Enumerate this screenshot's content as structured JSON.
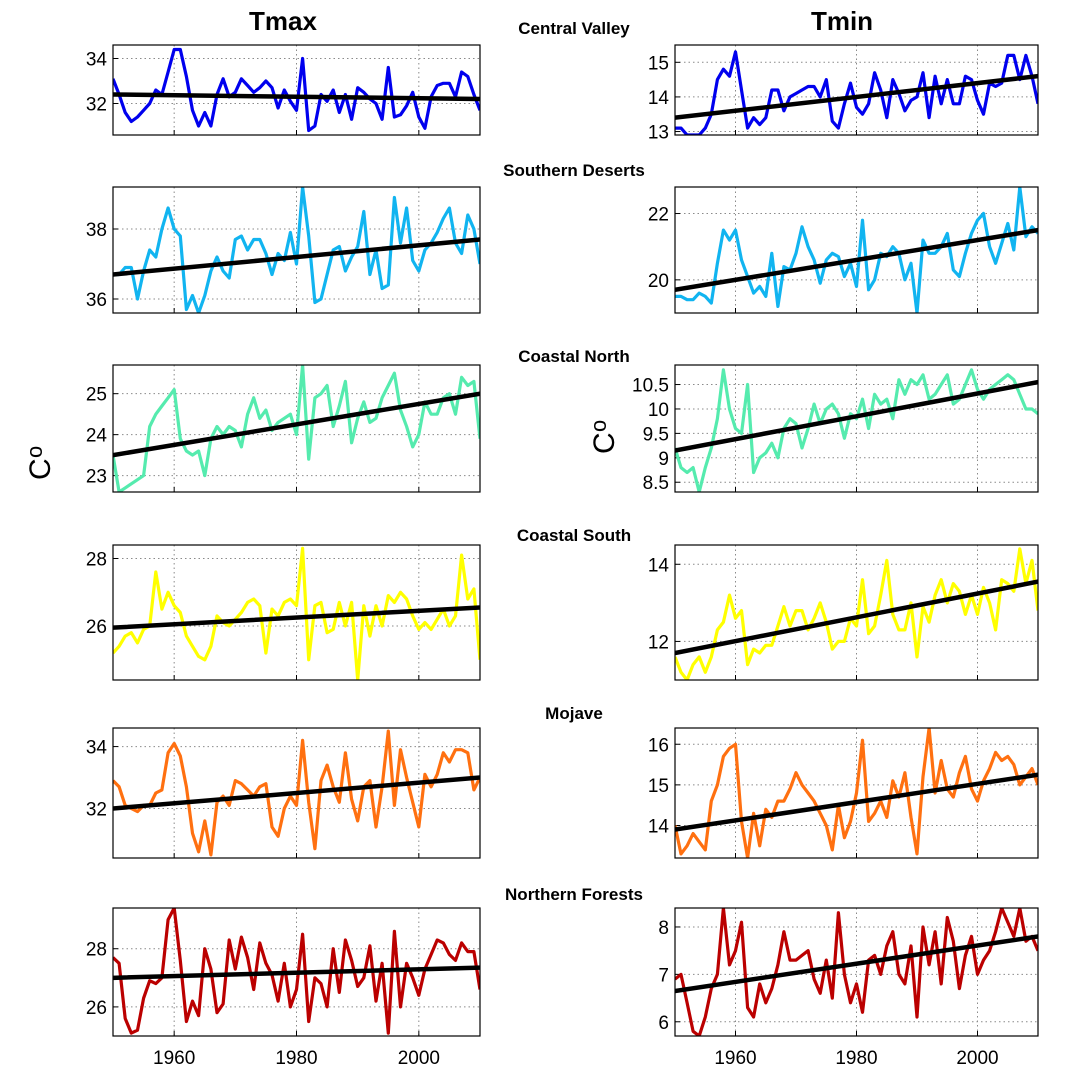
{
  "figure": {
    "column_titles": [
      "Tmax",
      "Tmin"
    ],
    "y_unit": "°C",
    "y_unit_base": "C",
    "y_unit_sup": "o"
  },
  "chart_data": [
    {
      "type": "line",
      "panel": "Central Valley Tmax",
      "title": "Central Valley",
      "column": "Tmax",
      "color": "#0000ee",
      "x_start": 1950,
      "x_step": 1,
      "xlim": [
        1950,
        2010
      ],
      "xticks": [
        1960,
        1980,
        2000
      ],
      "ylim": [
        30.6,
        34.6
      ],
      "yticks": [
        32,
        34
      ],
      "ytick_labels": [
        "32",
        "34"
      ],
      "grid": true,
      "values": [
        33.1,
        32.4,
        31.6,
        31.2,
        31.4,
        31.7,
        32.0,
        32.6,
        32.4,
        33.4,
        34.4,
        34.4,
        33.2,
        31.7,
        31.0,
        31.6,
        31.0,
        32.4,
        33.1,
        32.3,
        32.5,
        33.1,
        32.8,
        32.5,
        32.7,
        33.0,
        32.7,
        31.8,
        32.6,
        32.1,
        31.7,
        34.0,
        30.8,
        31.0,
        32.4,
        32.1,
        32.6,
        31.6,
        32.4,
        31.3,
        32.7,
        32.5,
        32.2,
        32.0,
        31.3,
        33.6,
        31.4,
        31.5,
        31.9,
        32.5,
        31.4,
        30.9,
        32.3,
        32.8,
        32.9,
        32.9,
        32.3,
        33.4,
        33.2,
        32.4,
        31.7
      ],
      "trend": [
        32.4,
        32.2
      ]
    },
    {
      "type": "line",
      "panel": "Central Valley Tmin",
      "title": "Central Valley",
      "column": "Tmin",
      "color": "#0000ee",
      "x_start": 1950,
      "x_step": 1,
      "xlim": [
        1950,
        2010
      ],
      "xticks": [
        1960,
        1980,
        2000
      ],
      "ylim": [
        12.9,
        15.5
      ],
      "yticks": [
        13,
        14,
        15
      ],
      "ytick_labels": [
        "13",
        "14",
        "15"
      ],
      "grid": true,
      "values": [
        13.1,
        13.1,
        12.9,
        12.9,
        12.9,
        13.1,
        13.5,
        14.5,
        14.8,
        14.6,
        15.3,
        14.2,
        13.1,
        13.4,
        13.2,
        13.4,
        14.2,
        14.2,
        13.6,
        14.0,
        14.1,
        14.2,
        14.3,
        14.3,
        14.0,
        14.5,
        13.3,
        13.1,
        13.8,
        14.4,
        13.7,
        13.5,
        13.8,
        14.7,
        14.2,
        13.4,
        14.5,
        14.1,
        13.6,
        13.9,
        14.0,
        14.7,
        13.4,
        14.6,
        13.8,
        14.5,
        13.8,
        13.8,
        14.6,
        14.5,
        13.9,
        13.5,
        14.4,
        14.3,
        14.4,
        15.2,
        15.2,
        14.5,
        15.2,
        14.6,
        13.8
      ],
      "trend": [
        13.4,
        14.6
      ]
    },
    {
      "type": "line",
      "panel": "Southern Deserts Tmax",
      "title": "Southern Deserts",
      "column": "Tmax",
      "color": "#11b4f0",
      "x_start": 1950,
      "x_step": 1,
      "xlim": [
        1950,
        2010
      ],
      "xticks": [
        1960,
        1980,
        2000
      ],
      "ylim": [
        35.6,
        39.2
      ],
      "yticks": [
        36,
        38
      ],
      "ytick_labels": [
        "36",
        "38"
      ],
      "grid": true,
      "values": [
        36.7,
        36.7,
        36.9,
        36.9,
        36.0,
        36.8,
        37.4,
        37.2,
        38.0,
        38.6,
        38.0,
        37.8,
        35.7,
        36.1,
        35.6,
        36.1,
        36.8,
        37.2,
        36.8,
        36.6,
        37.7,
        37.8,
        37.4,
        37.7,
        37.7,
        37.3,
        36.7,
        37.3,
        37.1,
        37.9,
        37.0,
        39.2,
        37.8,
        35.9,
        36.0,
        36.7,
        37.4,
        37.5,
        36.8,
        37.2,
        37.5,
        38.5,
        36.7,
        37.4,
        36.3,
        36.4,
        38.9,
        37.6,
        38.6,
        37.1,
        36.8,
        37.4,
        37.6,
        37.9,
        38.3,
        38.6,
        37.6,
        37.3,
        38.4,
        38.0,
        37.0
      ],
      "trend": [
        36.7,
        37.7
      ]
    },
    {
      "type": "line",
      "panel": "Southern Deserts Tmin",
      "title": "Southern Deserts",
      "column": "Tmin",
      "color": "#11b4f0",
      "x_start": 1950,
      "x_step": 1,
      "xlim": [
        1950,
        2010
      ],
      "xticks": [
        1960,
        1980,
        2000
      ],
      "ylim": [
        19.0,
        22.8
      ],
      "yticks": [
        20,
        22
      ],
      "ytick_labels": [
        "20",
        "22"
      ],
      "grid": true,
      "values": [
        19.5,
        19.5,
        19.4,
        19.4,
        19.6,
        19.5,
        19.3,
        20.5,
        21.5,
        21.2,
        21.5,
        20.6,
        20.1,
        19.6,
        19.8,
        19.5,
        20.8,
        19.2,
        20.4,
        20.3,
        20.8,
        21.6,
        21.0,
        20.6,
        19.9,
        20.6,
        20.8,
        20.7,
        20.1,
        20.5,
        19.8,
        21.8,
        19.7,
        20.0,
        20.8,
        20.7,
        21.0,
        20.8,
        20.0,
        20.5,
        19.0,
        21.2,
        20.8,
        20.8,
        21.0,
        21.4,
        20.3,
        20.1,
        20.8,
        21.4,
        21.8,
        22.0,
        21.0,
        20.5,
        21.1,
        21.7,
        20.9,
        22.8,
        21.3,
        21.6,
        21.4
      ],
      "trend": [
        19.7,
        21.5
      ]
    },
    {
      "type": "line",
      "panel": "Coastal North Tmax",
      "title": "Coastal North",
      "column": "Tmax",
      "color": "#55ebae",
      "x_start": 1950,
      "x_step": 1,
      "xlim": [
        1950,
        2010
      ],
      "xticks": [
        1960,
        1980,
        2000
      ],
      "ylim": [
        22.6,
        25.7
      ],
      "yticks": [
        23,
        24,
        25
      ],
      "ytick_labels": [
        "23",
        "24",
        "25"
      ],
      "grid": true,
      "values": [
        23.5,
        22.6,
        22.7,
        22.8,
        22.9,
        23.0,
        24.2,
        24.5,
        24.7,
        24.9,
        25.1,
        23.9,
        23.6,
        23.5,
        23.6,
        23.0,
        23.9,
        24.2,
        24.0,
        24.2,
        24.1,
        23.7,
        24.5,
        24.9,
        24.4,
        24.6,
        24.1,
        24.3,
        24.4,
        24.5,
        24.0,
        25.7,
        23.4,
        24.9,
        25.0,
        25.2,
        24.2,
        24.7,
        25.3,
        23.8,
        24.4,
        24.8,
        24.3,
        24.4,
        24.9,
        25.2,
        25.5,
        24.6,
        24.2,
        23.7,
        24.0,
        24.8,
        24.5,
        24.5,
        24.9,
        25.0,
        24.5,
        25.4,
        25.2,
        25.3,
        23.9
      ],
      "trend": [
        23.5,
        25.0
      ]
    },
    {
      "type": "line",
      "panel": "Coastal North Tmin",
      "title": "Coastal North",
      "column": "Tmin",
      "color": "#55ebae",
      "x_start": 1950,
      "x_step": 1,
      "xlim": [
        1950,
        2010
      ],
      "xticks": [
        1960,
        1980,
        2000
      ],
      "ylim": [
        8.3,
        10.9
      ],
      "yticks": [
        8.5,
        9,
        9.5,
        10,
        10.5
      ],
      "ytick_labels": [
        "8.5",
        "9",
        "9.5",
        "10",
        "10.5"
      ],
      "grid": true,
      "values": [
        9.2,
        8.8,
        8.7,
        8.8,
        8.3,
        8.8,
        9.2,
        9.8,
        10.8,
        10.0,
        9.6,
        9.5,
        10.5,
        8.7,
        9.0,
        9.1,
        9.3,
        9.0,
        9.6,
        9.8,
        9.7,
        9.2,
        9.6,
        10.1,
        9.7,
        10.0,
        10.1,
        9.9,
        9.4,
        9.9,
        9.8,
        10.2,
        9.6,
        10.3,
        10.1,
        10.2,
        9.8,
        10.6,
        10.3,
        10.6,
        10.5,
        10.7,
        10.2,
        10.3,
        10.5,
        10.7,
        10.1,
        10.2,
        10.5,
        10.8,
        10.4,
        10.2,
        10.4,
        10.5,
        10.6,
        10.7,
        10.6,
        10.3,
        10.0,
        10.0,
        9.9
      ],
      "trend": [
        9.15,
        10.55
      ]
    },
    {
      "type": "line",
      "panel": "Coastal South Tmax",
      "title": "Coastal South",
      "column": "Tmax",
      "color": "#ffff00",
      "x_start": 1950,
      "x_step": 1,
      "xlim": [
        1950,
        2010
      ],
      "xticks": [
        1960,
        1980,
        2000
      ],
      "ylim": [
        24.4,
        28.4
      ],
      "yticks": [
        26,
        28
      ],
      "ytick_labels": [
        "26",
        "28"
      ],
      "grid": true,
      "values": [
        25.2,
        25.4,
        25.7,
        25.8,
        25.5,
        25.9,
        26.0,
        27.6,
        26.5,
        27.0,
        26.6,
        26.4,
        25.7,
        25.4,
        25.1,
        25.0,
        25.4,
        26.3,
        26.1,
        26.0,
        26.2,
        26.4,
        26.7,
        26.8,
        26.6,
        25.2,
        26.5,
        26.3,
        26.7,
        26.8,
        26.6,
        28.3,
        25.0,
        26.6,
        26.7,
        25.8,
        25.9,
        26.7,
        26.0,
        26.7,
        24.4,
        26.6,
        25.7,
        26.6,
        26.0,
        26.9,
        26.7,
        27.0,
        26.8,
        26.3,
        25.9,
        26.1,
        25.9,
        26.2,
        26.5,
        26.0,
        26.3,
        28.1,
        26.8,
        27.1,
        25.0
      ],
      "trend": [
        25.95,
        26.55
      ]
    },
    {
      "type": "line",
      "panel": "Coastal South Tmin",
      "title": "Coastal South",
      "column": "Tmin",
      "color": "#ffff00",
      "x_start": 1950,
      "x_step": 1,
      "xlim": [
        1950,
        2010
      ],
      "xticks": [
        1960,
        1980,
        2000
      ],
      "ylim": [
        11.0,
        14.5
      ],
      "yticks": [
        12,
        14
      ],
      "ytick_labels": [
        "12",
        "14"
      ],
      "grid": true,
      "values": [
        11.6,
        11.2,
        11.0,
        11.4,
        11.6,
        11.2,
        11.6,
        12.3,
        12.5,
        13.2,
        12.6,
        12.8,
        11.4,
        11.8,
        11.7,
        11.9,
        11.9,
        12.4,
        12.9,
        12.4,
        12.8,
        12.8,
        12.3,
        12.6,
        13.0,
        12.5,
        11.8,
        12.0,
        12.0,
        12.6,
        12.4,
        13.6,
        12.2,
        12.4,
        13.2,
        14.1,
        12.7,
        12.3,
        12.3,
        13.0,
        11.6,
        12.9,
        12.5,
        13.2,
        13.6,
        13.0,
        13.5,
        13.3,
        12.7,
        13.2,
        12.7,
        13.4,
        13.0,
        12.3,
        13.6,
        13.5,
        13.3,
        14.4,
        13.5,
        14.1,
        12.8
      ],
      "trend": [
        11.7,
        13.55
      ]
    },
    {
      "type": "line",
      "panel": "Mojave Tmax",
      "title": "Mojave",
      "column": "Tmax",
      "color": "#ff7010",
      "x_start": 1950,
      "x_step": 1,
      "xlim": [
        1950,
        2010
      ],
      "xticks": [
        1960,
        1980,
        2000
      ],
      "ylim": [
        30.4,
        34.6
      ],
      "yticks": [
        32,
        34
      ],
      "ytick_labels": [
        "32",
        "34"
      ],
      "grid": true,
      "values": [
        32.9,
        32.7,
        32.1,
        32.0,
        31.9,
        32.1,
        32.1,
        32.5,
        32.6,
        33.8,
        34.1,
        33.7,
        32.7,
        31.2,
        30.6,
        31.6,
        30.5,
        32.2,
        32.4,
        32.1,
        32.9,
        32.8,
        32.6,
        32.4,
        32.7,
        32.8,
        31.4,
        31.1,
        32.0,
        32.4,
        32.1,
        34.2,
        32.2,
        30.7,
        32.9,
        33.4,
        32.7,
        32.2,
        33.8,
        32.3,
        31.6,
        32.7,
        32.9,
        31.4,
        32.7,
        34.5,
        32.1,
        33.9,
        33.0,
        32.2,
        31.4,
        33.1,
        32.7,
        33.1,
        33.8,
        33.5,
        33.9,
        33.9,
        33.8,
        32.6,
        33.0
      ],
      "trend": [
        32.0,
        33.0
      ]
    },
    {
      "type": "line",
      "panel": "Mojave Tmin",
      "title": "Mojave",
      "column": "Tmin",
      "color": "#ff7010",
      "x_start": 1950,
      "x_step": 1,
      "xlim": [
        1950,
        2010
      ],
      "xticks": [
        1960,
        1980,
        2000
      ],
      "ylim": [
        13.2,
        16.4
      ],
      "yticks": [
        14,
        15,
        16
      ],
      "ytick_labels": [
        "14",
        "15",
        "16"
      ],
      "grid": true,
      "values": [
        14.0,
        13.3,
        13.5,
        13.8,
        13.6,
        13.4,
        14.6,
        15.0,
        15.7,
        15.9,
        16.0,
        14.1,
        13.2,
        14.3,
        13.5,
        14.4,
        14.2,
        14.6,
        14.6,
        14.9,
        15.3,
        15.0,
        14.8,
        14.6,
        14.3,
        14.0,
        13.4,
        14.5,
        13.7,
        14.1,
        14.8,
        16.1,
        14.1,
        14.3,
        14.6,
        14.2,
        15.1,
        14.7,
        15.3,
        14.2,
        13.3,
        15.2,
        16.4,
        14.8,
        15.6,
        14.9,
        14.7,
        15.3,
        15.7,
        14.9,
        14.6,
        15.1,
        15.4,
        15.8,
        15.6,
        15.7,
        15.5,
        15.0,
        15.2,
        15.4,
        15.0
      ],
      "trend": [
        13.9,
        15.25
      ]
    },
    {
      "type": "line",
      "panel": "Northern Forests Tmax",
      "title": "Northern Forests",
      "column": "Tmax",
      "color": "#bb0000",
      "x_start": 1950,
      "x_step": 1,
      "xlim": [
        1950,
        2010
      ],
      "xticks": [
        1960,
        1980,
        2000
      ],
      "ylim": [
        25.0,
        29.4
      ],
      "yticks": [
        26,
        28
      ],
      "ytick_labels": [
        "26",
        "28"
      ],
      "grid": true,
      "values": [
        27.7,
        27.5,
        25.6,
        25.1,
        25.2,
        26.3,
        26.9,
        26.8,
        27.0,
        29.0,
        29.4,
        27.6,
        25.5,
        26.2,
        25.7,
        28.0,
        27.3,
        25.8,
        26.1,
        28.3,
        27.3,
        28.4,
        27.7,
        26.6,
        28.2,
        27.5,
        27.1,
        26.2,
        27.5,
        26.0,
        26.6,
        28.5,
        25.5,
        27.0,
        26.8,
        26.0,
        28.0,
        26.5,
        28.3,
        27.6,
        26.7,
        27.0,
        28.1,
        26.2,
        27.5,
        25.1,
        28.6,
        26.0,
        27.5,
        27.0,
        26.4,
        27.3,
        27.8,
        28.3,
        28.2,
        27.8,
        27.6,
        28.2,
        27.9,
        27.9,
        26.6
      ],
      "trend": [
        27.0,
        27.35
      ]
    },
    {
      "type": "line",
      "panel": "Northern Forests Tmin",
      "title": "Northern Forests",
      "column": "Tmin",
      "color": "#bb0000",
      "x_start": 1950,
      "x_step": 1,
      "xlim": [
        1950,
        2010
      ],
      "xticks": [
        1960,
        1980,
        2000
      ],
      "ylim": [
        5.7,
        8.4
      ],
      "yticks": [
        6,
        7,
        8
      ],
      "ytick_labels": [
        "6",
        "7",
        "8"
      ],
      "grid": true,
      "values": [
        6.9,
        7.0,
        6.4,
        5.8,
        5.7,
        6.1,
        6.7,
        7.0,
        8.4,
        7.2,
        7.5,
        8.1,
        6.3,
        6.1,
        6.8,
        6.4,
        6.7,
        7.2,
        7.9,
        7.3,
        7.3,
        7.4,
        7.5,
        6.9,
        6.6,
        7.3,
        6.5,
        8.3,
        7.0,
        6.4,
        6.8,
        6.2,
        7.3,
        7.4,
        7.0,
        7.6,
        7.9,
        7.0,
        6.8,
        7.6,
        6.1,
        8.0,
        7.2,
        7.9,
        6.8,
        8.2,
        7.7,
        6.7,
        7.4,
        7.8,
        7.0,
        7.3,
        7.5,
        7.9,
        8.4,
        8.1,
        7.8,
        8.4,
        7.7,
        7.8,
        7.5
      ],
      "trend": [
        6.65,
        7.8
      ]
    }
  ]
}
